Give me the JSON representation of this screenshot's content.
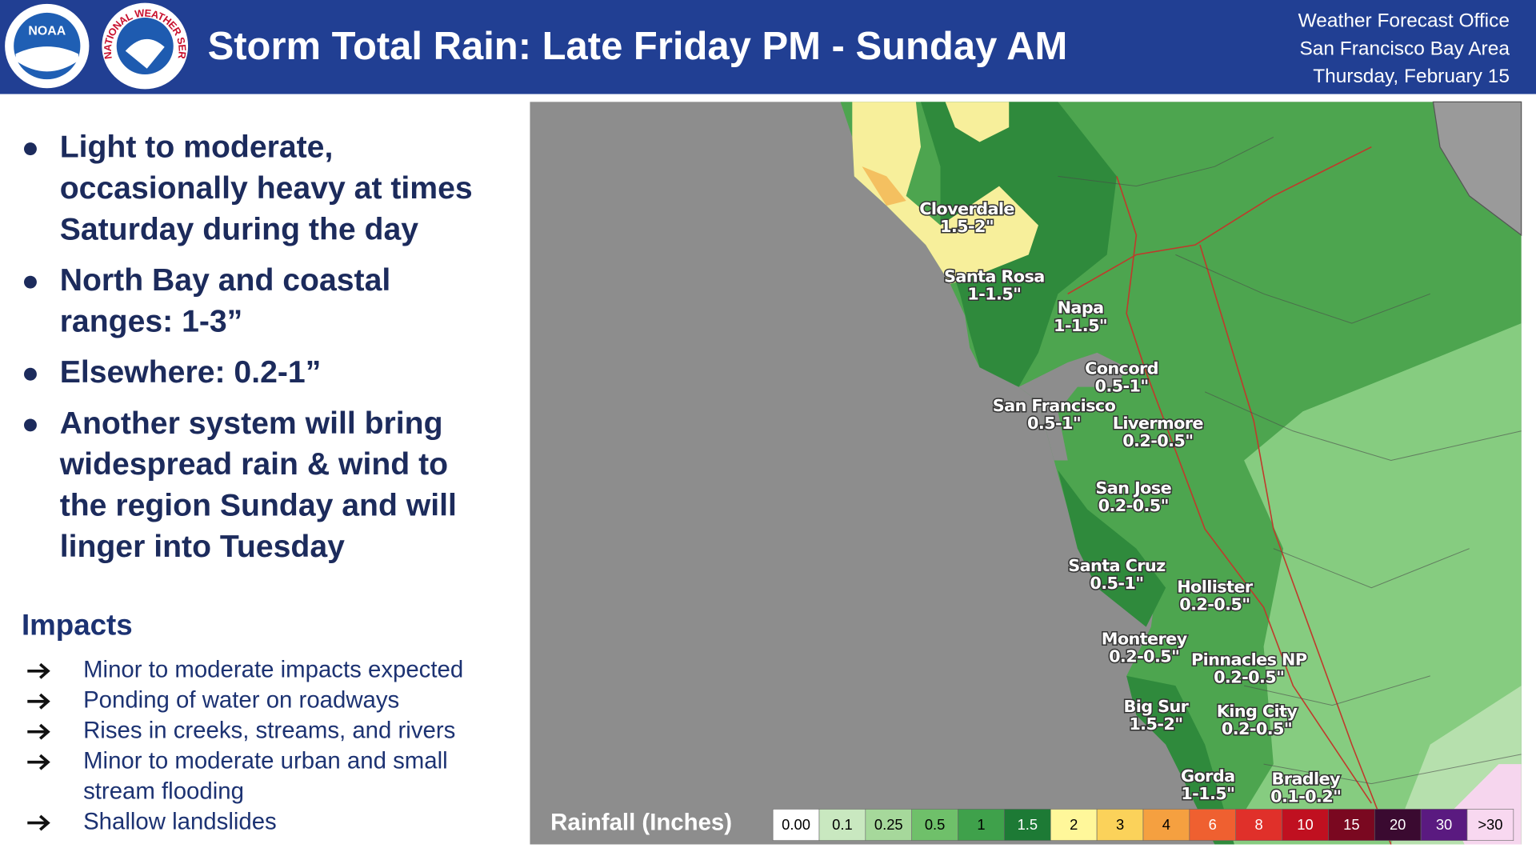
{
  "header": {
    "title": "Storm Total Rain: Late Friday PM - Sunday AM",
    "logos": [
      "NOAA",
      "NATIONAL WEATHER SERVICE"
    ],
    "office": [
      "Weather Forecast Office",
      "San Francisco Bay Area",
      "Thursday, February 15"
    ]
  },
  "bullets": [
    [
      "Light to moderate,",
      "occasionally heavy at times",
      "Saturday during the day"
    ],
    [
      "North Bay and coastal",
      "ranges: 1-3”"
    ],
    [
      "Elsewhere: 0.2-1”"
    ],
    [
      "Another system will bring",
      "widespread rain & wind to",
      "the region Sunday and will",
      "linger into Tuesday"
    ]
  ],
  "impacts": {
    "title": "Impacts",
    "items": [
      [
        "Minor to moderate impacts expected"
      ],
      [
        "Ponding of water on roadways"
      ],
      [
        "Rises in creeks, streams, and rivers"
      ],
      [
        "Minor to moderate urban and small",
        "stream flooding"
      ],
      [
        "Shallow landslides"
      ]
    ]
  },
  "map": {
    "labels": [
      {
        "name": "Cloverdale",
        "amount": "1.5-2\""
      },
      {
        "name": "Santa Rosa",
        "amount": "1-1.5\""
      },
      {
        "name": "Napa",
        "amount": "1-1.5\""
      },
      {
        "name": "Concord",
        "amount": "0.5-1\""
      },
      {
        "name": "San Francisco",
        "amount": "0.5-1\""
      },
      {
        "name": "Livermore",
        "amount": "0.2-0.5\""
      },
      {
        "name": "San Jose",
        "amount": "0.2-0.5\""
      },
      {
        "name": "Santa Cruz",
        "amount": "0.5-1\""
      },
      {
        "name": "Hollister",
        "amount": "0.2-0.5\""
      },
      {
        "name": "Monterey",
        "amount": "0.2-0.5\""
      },
      {
        "name": "Pinnacles NP",
        "amount": "0.2-0.5\""
      },
      {
        "name": "Big Sur",
        "amount": "1.5-2\""
      },
      {
        "name": "King City",
        "amount": "0.2-0.5\""
      },
      {
        "name": "Gorda",
        "amount": "1-1.5\""
      },
      {
        "name": "Bradley",
        "amount": "0.1-0.2\""
      }
    ]
  },
  "legend": {
    "title": "Rainfall (Inches)",
    "items": [
      {
        "label": "0.00",
        "color": "#ffffff"
      },
      {
        "label": "0.1",
        "color": "#c9e8c0"
      },
      {
        "label": "0.25",
        "color": "#a6d89b"
      },
      {
        "label": "0.5",
        "color": "#6fc06a"
      },
      {
        "label": "1",
        "color": "#3fa14b"
      },
      {
        "label": "1.5",
        "color": "#1d7a35"
      },
      {
        "label": "2",
        "color": "#fff79a"
      },
      {
        "label": "3",
        "color": "#fbd25a"
      },
      {
        "label": "4",
        "color": "#f5a040"
      },
      {
        "label": "6",
        "color": "#ef6030"
      },
      {
        "label": "8",
        "color": "#e0302a"
      },
      {
        "label": "10",
        "color": "#c01020"
      },
      {
        "label": "15",
        "color": "#7a0820"
      },
      {
        "label": "20",
        "color": "#3a0a30"
      },
      {
        "label": "30",
        "color": "#5a1a80"
      },
      {
        "label": ">30",
        "color": "#f8d8f0"
      }
    ]
  }
}
